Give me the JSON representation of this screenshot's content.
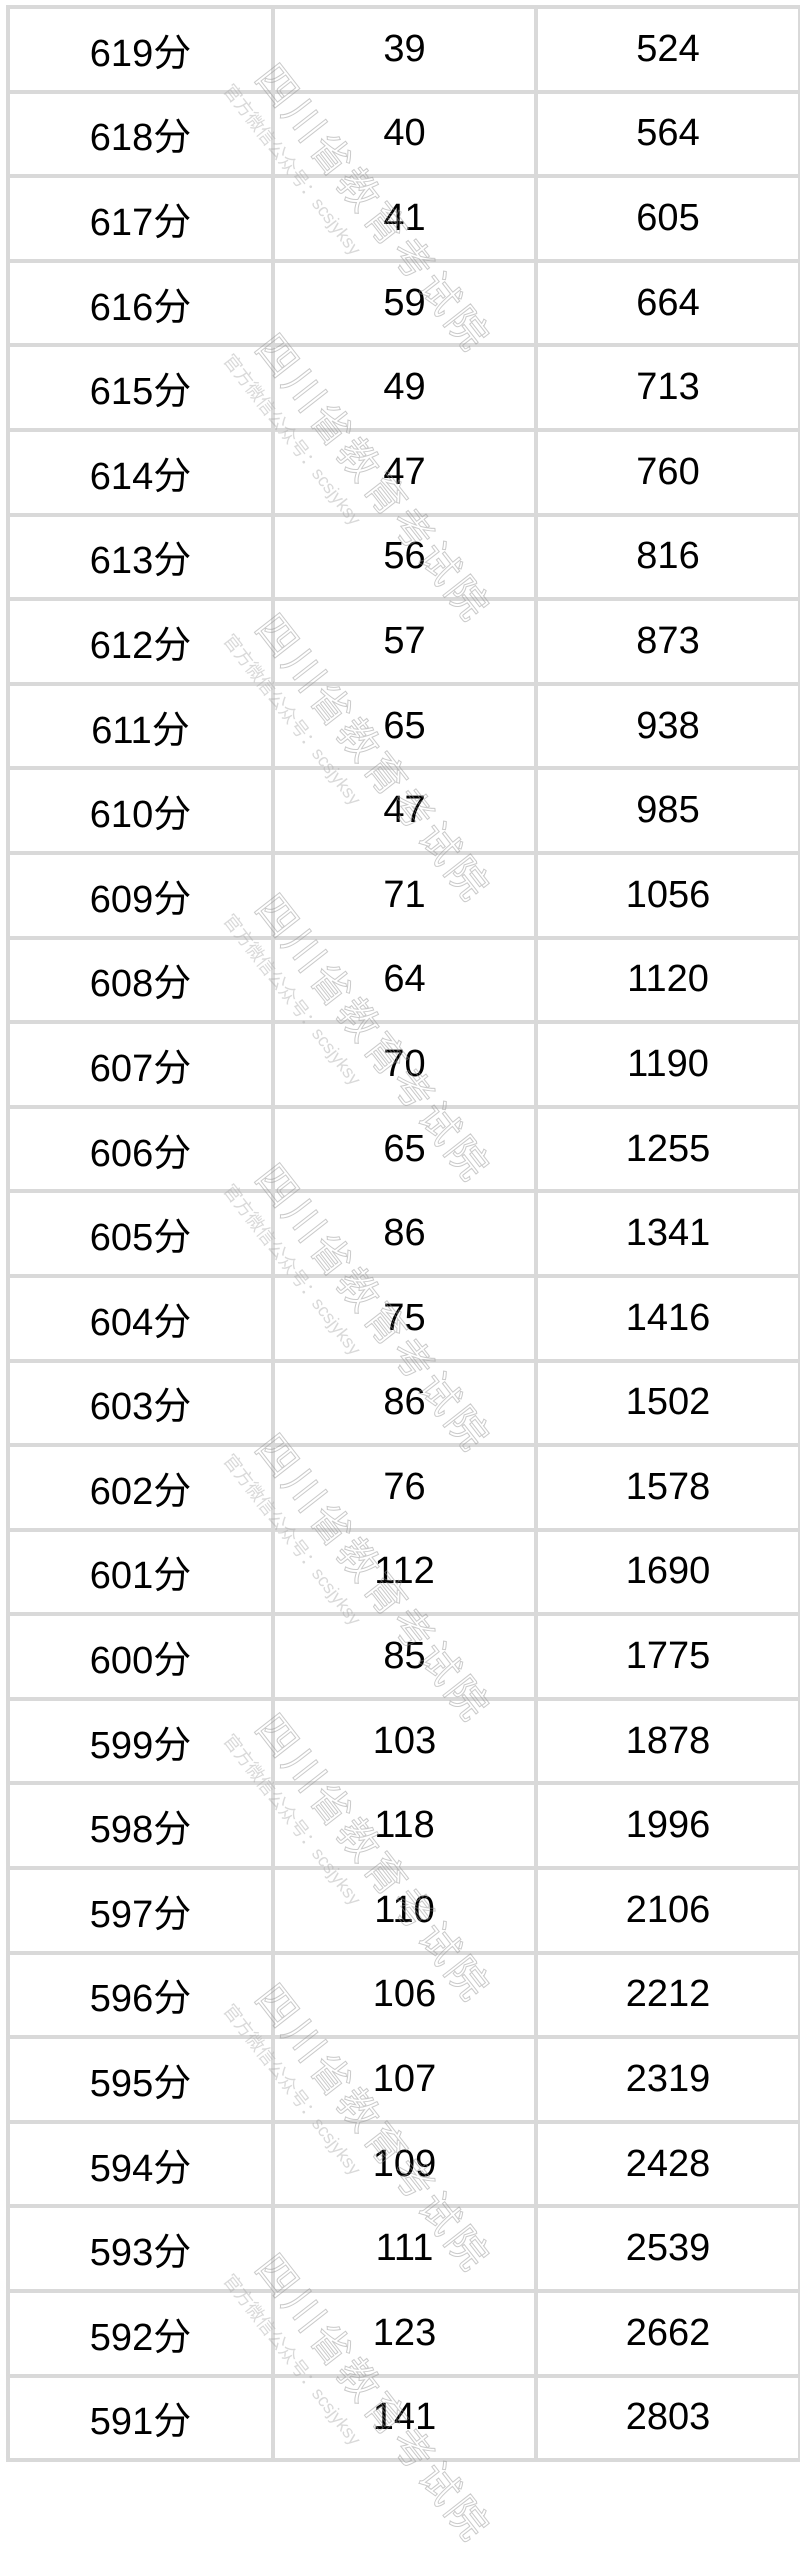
{
  "table": {
    "rows": [
      [
        "619分",
        "39",
        "524"
      ],
      [
        "618分",
        "40",
        "564"
      ],
      [
        "617分",
        "41",
        "605"
      ],
      [
        "616分",
        "59",
        "664"
      ],
      [
        "615分",
        "49",
        "713"
      ],
      [
        "614分",
        "47",
        "760"
      ],
      [
        "613分",
        "56",
        "816"
      ],
      [
        "612分",
        "57",
        "873"
      ],
      [
        "611分",
        "65",
        "938"
      ],
      [
        "610分",
        "47",
        "985"
      ],
      [
        "609分",
        "71",
        "1056"
      ],
      [
        "608分",
        "64",
        "1120"
      ],
      [
        "607分",
        "70",
        "1190"
      ],
      [
        "606分",
        "65",
        "1255"
      ],
      [
        "605分",
        "86",
        "1341"
      ],
      [
        "604分",
        "75",
        "1416"
      ],
      [
        "603分",
        "86",
        "1502"
      ],
      [
        "602分",
        "76",
        "1578"
      ],
      [
        "601分",
        "112",
        "1690"
      ],
      [
        "600分",
        "85",
        "1775"
      ],
      [
        "599分",
        "103",
        "1878"
      ],
      [
        "598分",
        "118",
        "1996"
      ],
      [
        "597分",
        "110",
        "2106"
      ],
      [
        "596分",
        "106",
        "2212"
      ],
      [
        "595分",
        "107",
        "2319"
      ],
      [
        "594分",
        "109",
        "2428"
      ],
      [
        "593分",
        "111",
        "2539"
      ],
      [
        "592分",
        "123",
        "2662"
      ],
      [
        "591分",
        "141",
        "2803"
      ]
    ]
  },
  "watermark": {
    "title": "四川省教育考试院",
    "subtitle": "官方微信公众号：scsjyksy"
  }
}
